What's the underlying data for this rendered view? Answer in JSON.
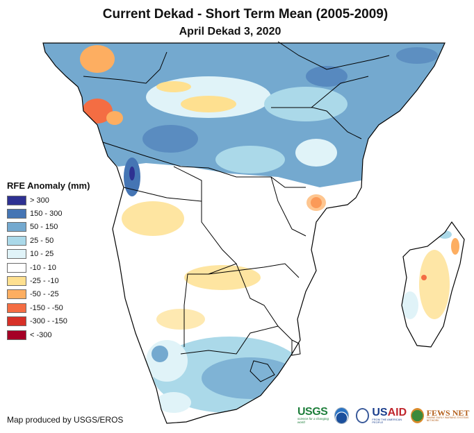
{
  "header": {
    "title": "Current Dekad - Short Term Mean (2005-2009)",
    "subtitle": "April Dekad 3, 2020"
  },
  "legend": {
    "title": "RFE Anomaly (mm)",
    "items": [
      {
        "label": "> 300",
        "color": "#2e3192"
      },
      {
        "label": "150 - 300",
        "color": "#4575b4"
      },
      {
        "label": "50 - 150",
        "color": "#74a9cf"
      },
      {
        "label": "25 - 50",
        "color": "#abd9e9"
      },
      {
        "label": "10 - 25",
        "color": "#e0f3f8"
      },
      {
        "label": "-10 - 10",
        "color": "#ffffff"
      },
      {
        "label": "-25 - -10",
        "color": "#fee090"
      },
      {
        "label": "-50 - -25",
        "color": "#fdae61"
      },
      {
        "label": "-150 - -50",
        "color": "#f46d43"
      },
      {
        "label": "-300 - -150",
        "color": "#d73027"
      },
      {
        "label": "< -300",
        "color": "#a50026"
      }
    ]
  },
  "footer": {
    "credit": "Map produced by USGS/EROS",
    "logos": {
      "usgs": "USGS",
      "usgs_tagline": "science for a changing world",
      "usaid_a": "US",
      "usaid_b": "AID",
      "usaid_tagline": "FROM THE AMERICAN PEOPLE",
      "fews": "FEWS NET",
      "fews_tagline": "FAMINE EARLY WARNING SYSTEMS NETWORK"
    }
  },
  "map": {
    "region": "Central, East and Southern Africa",
    "variable": "Rainfall estimate anomaly"
  }
}
